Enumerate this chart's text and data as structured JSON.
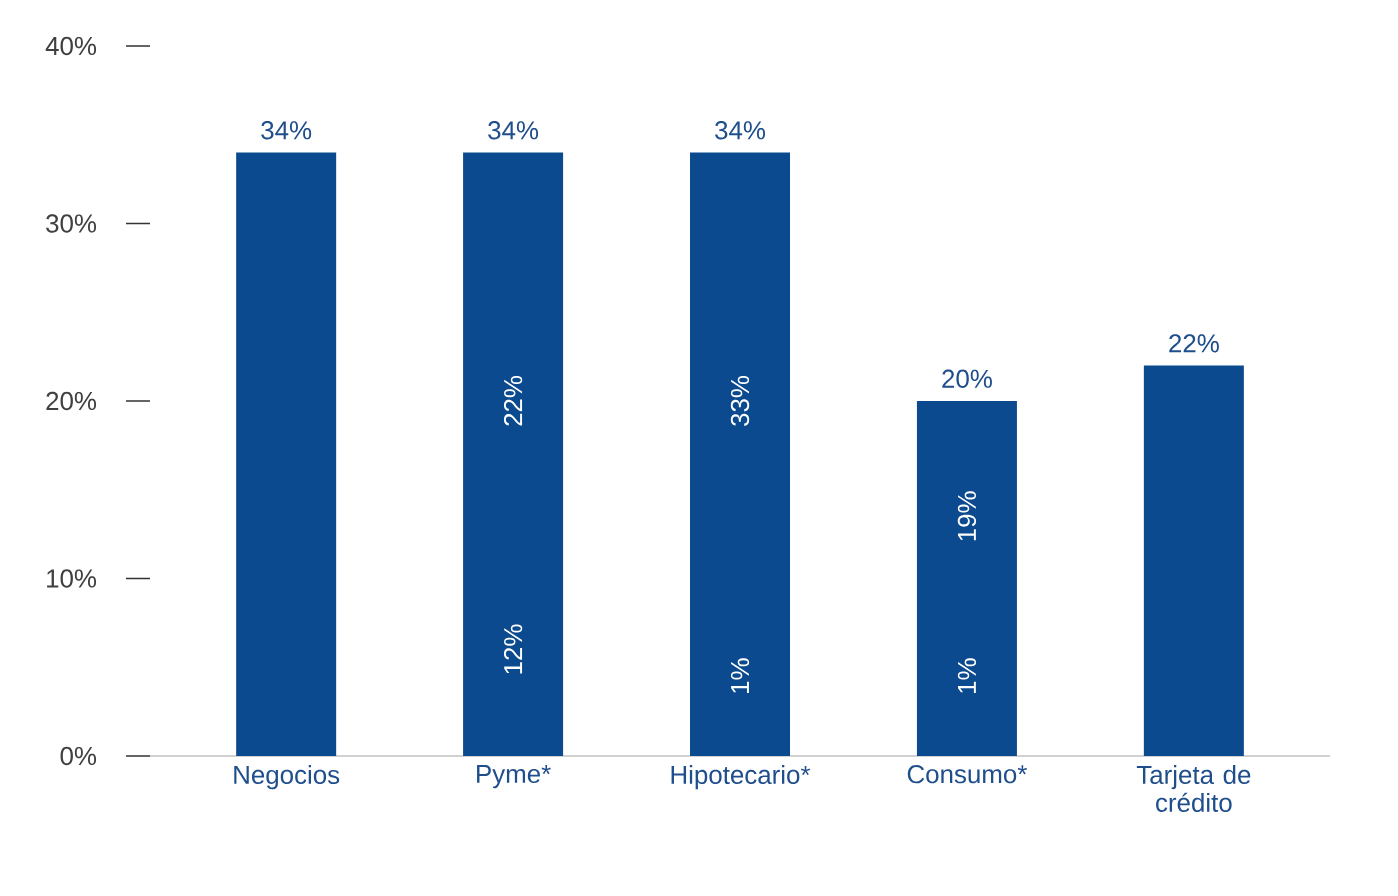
{
  "chart_data": {
    "type": "bar",
    "categories": [
      "Negocios",
      "Pyme*",
      "Hipotecario*",
      "Consumo*",
      "Tarjeta de crédito"
    ],
    "values": [
      34,
      34,
      34,
      20,
      22
    ],
    "value_labels": [
      "34%",
      "34%",
      "34%",
      "20%",
      "22%"
    ],
    "color": "#0b4a8e",
    "ylim": [
      0,
      40
    ],
    "yticks": [
      {
        "value": 0,
        "label": "0%"
      },
      {
        "value": 10,
        "label": "10%"
      },
      {
        "value": 20,
        "label": "20%"
      },
      {
        "value": 30,
        "label": "30%"
      },
      {
        "value": 40,
        "label": "40%"
      }
    ],
    "annotations": [
      "12%",
      "22%",
      "1%",
      "33%",
      "1%",
      "19%"
    ]
  }
}
